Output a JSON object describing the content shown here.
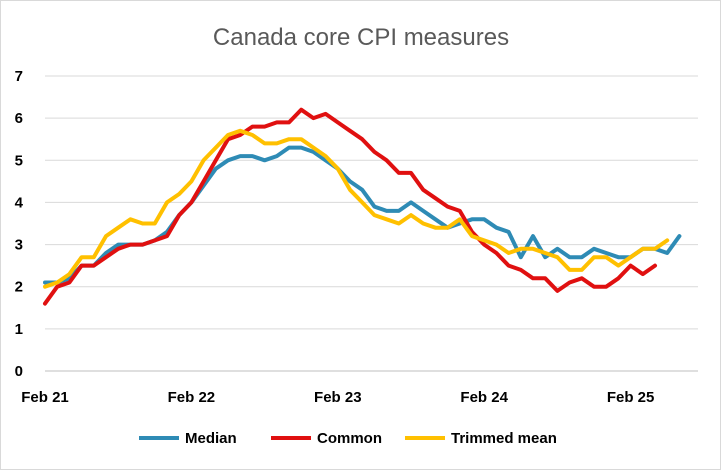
{
  "chart_data": {
    "type": "line",
    "title": "Canada core CPI measures",
    "xlabel": "",
    "ylabel": "",
    "ylim": [
      0,
      7
    ],
    "yticks": [
      "0",
      "1",
      "2",
      "3",
      "4",
      "5",
      "6",
      "7"
    ],
    "xticks": [
      {
        "label": "Feb 21",
        "index": 0
      },
      {
        "label": "Feb 22",
        "index": 12
      },
      {
        "label": "Feb 23",
        "index": 24
      },
      {
        "label": "Feb 24",
        "index": 36
      },
      {
        "label": "Feb 25",
        "index": 48
      }
    ],
    "grid": true,
    "legend_position": "bottom",
    "series": [
      {
        "name": "Median",
        "color": "#2e8bb5",
        "values": [
          2.1,
          2.1,
          2.2,
          2.5,
          2.5,
          2.8,
          3.0,
          3.0,
          3.0,
          3.1,
          3.3,
          3.7,
          4.0,
          4.4,
          4.8,
          5.0,
          5.1,
          5.1,
          5.0,
          5.1,
          5.3,
          5.3,
          5.2,
          5.0,
          4.8,
          4.5,
          4.3,
          3.9,
          3.8,
          3.8,
          4.0,
          3.8,
          3.6,
          3.4,
          3.5,
          3.6,
          3.6,
          3.4,
          3.3,
          2.7,
          3.2,
          2.7,
          2.9,
          2.7,
          2.7,
          2.9,
          2.8,
          2.7,
          2.7,
          2.9,
          2.9,
          2.8,
          3.2
        ]
      },
      {
        "name": "Common",
        "color": "#e01010",
        "values": [
          1.6,
          2.0,
          2.1,
          2.5,
          2.5,
          2.7,
          2.9,
          3.0,
          3.0,
          3.1,
          3.2,
          3.7,
          4.0,
          4.5,
          5.0,
          5.5,
          5.6,
          5.8,
          5.8,
          5.9,
          5.9,
          6.2,
          6.0,
          6.1,
          5.9,
          5.7,
          5.5,
          5.2,
          5.0,
          4.7,
          4.7,
          4.3,
          4.1,
          3.9,
          3.8,
          3.3,
          3.0,
          2.8,
          2.5,
          2.4,
          2.2,
          2.2,
          1.9,
          2.1,
          2.2,
          2.0,
          2.0,
          2.2,
          2.5,
          2.3,
          2.5
        ]
      },
      {
        "name": "Trimmed mean",
        "color": "#ffc000",
        "values": [
          2.0,
          2.1,
          2.3,
          2.7,
          2.7,
          3.2,
          3.4,
          3.6,
          3.5,
          3.5,
          4.0,
          4.2,
          4.5,
          5.0,
          5.3,
          5.6,
          5.7,
          5.6,
          5.4,
          5.4,
          5.5,
          5.5,
          5.3,
          5.1,
          4.8,
          4.3,
          4.0,
          3.7,
          3.6,
          3.5,
          3.7,
          3.5,
          3.4,
          3.4,
          3.6,
          3.2,
          3.1,
          3.0,
          2.8,
          2.9,
          2.9,
          2.8,
          2.7,
          2.4,
          2.4,
          2.7,
          2.7,
          2.5,
          2.7,
          2.9,
          2.9,
          3.1
        ]
      }
    ]
  }
}
